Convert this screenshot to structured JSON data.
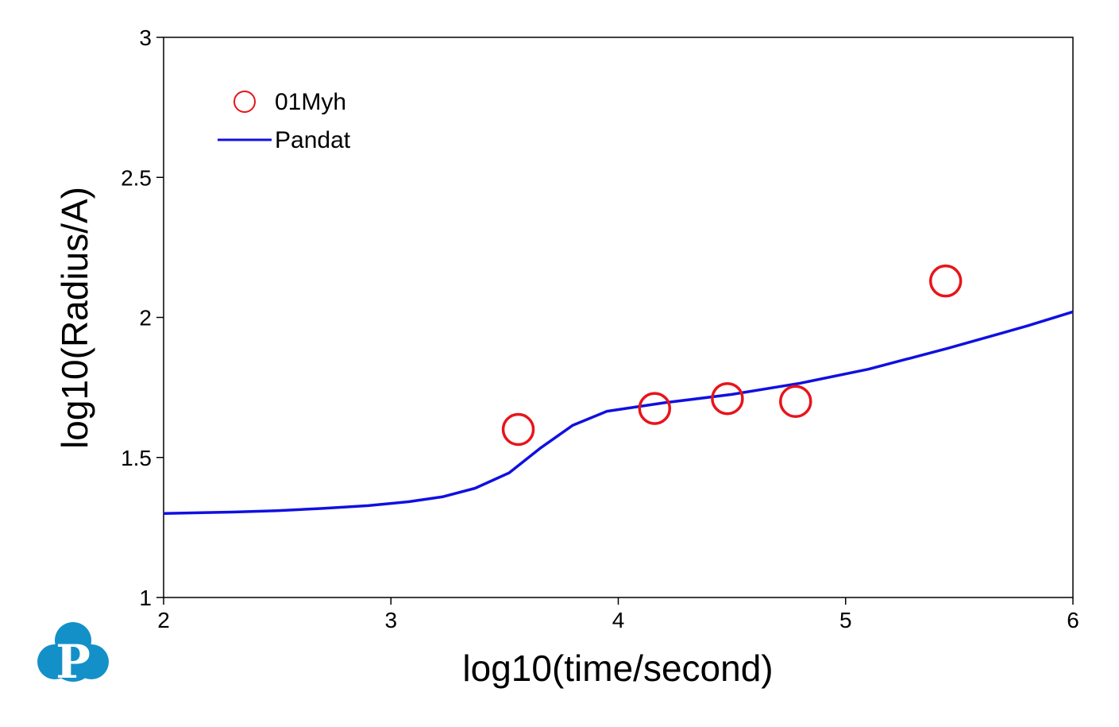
{
  "chart_data": {
    "type": "scatter",
    "xlabel": "log10(time/second)",
    "ylabel": "log10(Radius/A)",
    "xlim": [
      2,
      6
    ],
    "ylim": [
      1,
      3
    ],
    "x_ticks": [
      "2",
      "3",
      "4",
      "5",
      "6"
    ],
    "y_ticks": [
      "1",
      "1.5",
      "2",
      "2.5",
      "3"
    ],
    "grid": false,
    "legend_position": "top-left",
    "series": [
      {
        "name": "01Myh",
        "type": "scatter",
        "marker": "open-circle",
        "color": "#e8141b",
        "x": [
          3.56,
          4.16,
          4.48,
          4.78,
          5.44
        ],
        "y": [
          1.6,
          1.675,
          1.71,
          1.7,
          2.13
        ]
      },
      {
        "name": "Pandat",
        "type": "line",
        "color": "#1010e0",
        "x": [
          2.0,
          2.3,
          2.5,
          2.7,
          2.9,
          3.08,
          3.23,
          3.37,
          3.52,
          3.66,
          3.8,
          3.95,
          4.2,
          4.5,
          4.8,
          5.1,
          5.45,
          5.8,
          6.0
        ],
        "y": [
          1.3,
          1.305,
          1.31,
          1.318,
          1.328,
          1.342,
          1.36,
          1.39,
          1.445,
          1.535,
          1.615,
          1.665,
          1.695,
          1.725,
          1.765,
          1.815,
          1.89,
          1.97,
          2.02
        ]
      }
    ]
  },
  "logo": {
    "name": "pandat-logo-icon",
    "color": "#1390c8",
    "letter": "P"
  }
}
